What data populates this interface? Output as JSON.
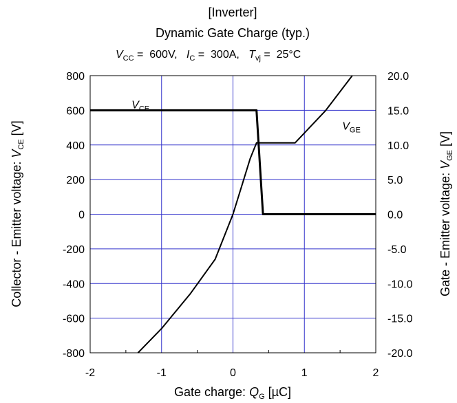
{
  "chart_data": {
    "type": "line",
    "title_line1": "[Inverter]",
    "title_line2": "Dynamic Gate Charge (typ.)",
    "conditions": [
      {
        "sym": "V",
        "sub": "CC",
        "eq": " =",
        "val": "600V,"
      },
      {
        "sym": "I",
        "sub": "C",
        "eq": " =",
        "val": "300A,"
      },
      {
        "sym": "T",
        "sub": "vj",
        "eq": " =",
        "val": "25°C"
      }
    ],
    "xlabel": {
      "text": "Gate charge: ",
      "sym": "Q",
      "sub": "G",
      "unit": " [µC]"
    },
    "ylabel_left": {
      "text": "Collector - Emitter voltage: ",
      "sym": "V",
      "sub": "CE",
      "unit": " [V]"
    },
    "ylabel_right": {
      "text": "Gate - Emitter voltage: ",
      "sym": "V",
      "sub": "GE",
      "unit": " [V]"
    },
    "xlim": [
      -2,
      2
    ],
    "ylim_left": [
      -800,
      800
    ],
    "ylim_right": [
      -20,
      20
    ],
    "x_ticks": [
      "-2",
      "-1",
      "0",
      "1",
      "2"
    ],
    "y_left_ticks": [
      "800",
      "600",
      "400",
      "200",
      "0",
      "-200",
      "-400",
      "-600",
      "-800"
    ],
    "y_right_ticks": [
      "20.0",
      "15.0",
      "10.0",
      "5.0",
      "0.0",
      "-5.0",
      "-10.0",
      "-15.0",
      "-20.0"
    ],
    "grid": true,
    "grid_color": "#3333cc",
    "line_color": "#000000",
    "series": [
      {
        "name": "V_CE",
        "label_sym": "V",
        "label_sub": "CE",
        "axis": "left",
        "x": [
          -2.0,
          0.33,
          0.42,
          2.0
        ],
        "y": [
          600,
          600,
          0,
          0
        ]
      },
      {
        "name": "V_GE",
        "label_sym": "V",
        "label_sub": "GE",
        "axis": "right",
        "x": [
          -1.33,
          -1.0,
          -0.6,
          -0.25,
          0.0,
          0.12,
          0.24,
          0.33,
          0.6,
          0.87,
          1.3,
          1.67
        ],
        "y": [
          -20.0,
          -16.5,
          -11.5,
          -6.5,
          0.0,
          4.0,
          8.0,
          10.3,
          10.3,
          10.3,
          15.0,
          20.0
        ]
      }
    ]
  }
}
